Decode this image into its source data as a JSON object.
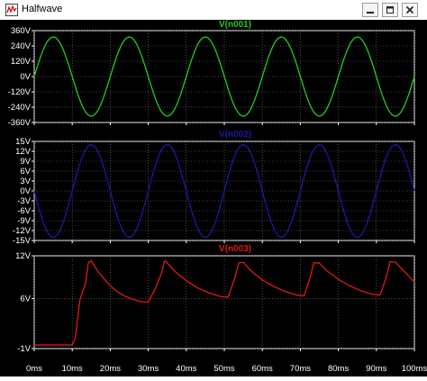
{
  "window": {
    "title": "Halfwave",
    "buttons": [
      {
        "name": "minimize-button",
        "icon": "minimize-icon"
      },
      {
        "name": "restore-button",
        "icon": "restore-icon"
      },
      {
        "name": "close-button",
        "icon": "close-icon"
      }
    ],
    "app_icon": "waveform-chart-icon"
  },
  "colors": {
    "background": "#000000",
    "axis": "#ffffff",
    "grid": "#7f7f7f",
    "trace1": "#22cc22",
    "trace2": "#1a1aa6",
    "trace3": "#e01818"
  },
  "chart_data": [
    {
      "type": "line",
      "title": "V(n001)",
      "color": "#22cc22",
      "ylim": [
        -360,
        360
      ],
      "xlim": [
        0,
        100
      ],
      "yticks": [
        "360V",
        "240V",
        "120V",
        "0V",
        "-120V",
        "-240V",
        "-360V"
      ],
      "ytick_values": [
        360,
        240,
        120,
        0,
        -120,
        -240,
        -360
      ],
      "series": [
        {
          "x": [
            0,
            5,
            10,
            15,
            20,
            25,
            30,
            35,
            40,
            45,
            50,
            55,
            60,
            65,
            70,
            75,
            80,
            85,
            90,
            95,
            100
          ],
          "values": [
            0,
            310,
            0,
            -310,
            0,
            310,
            0,
            -310,
            0,
            310,
            0,
            -310,
            0,
            310,
            0,
            -310,
            0,
            310,
            0,
            -310,
            0
          ]
        }
      ],
      "waveform": {
        "kind": "sine",
        "amplitude": 310,
        "frequency_hz": 50
      }
    },
    {
      "type": "line",
      "title": "V(n002)",
      "color": "#1a1aa6",
      "ylim": [
        -15,
        15
      ],
      "xlim": [
        0,
        100
      ],
      "yticks": [
        "15V",
        "12V",
        "9V",
        "6V",
        "3V",
        "0V",
        "-3V",
        "-6V",
        "-9V",
        "-12V",
        "-15V"
      ],
      "ytick_values": [
        15,
        12,
        9,
        6,
        3,
        0,
        -3,
        -6,
        -9,
        -12,
        -15
      ],
      "series": [
        {
          "x": [
            0,
            5,
            10,
            15,
            20,
            25,
            30,
            35,
            40,
            45,
            50,
            55,
            60,
            65,
            70,
            75,
            80,
            85,
            90,
            95,
            100
          ],
          "values": [
            0,
            -14,
            0,
            14,
            0,
            -14,
            0,
            14,
            0,
            -14,
            0,
            14,
            0,
            -14,
            0,
            14,
            0,
            -14,
            0,
            14,
            0
          ]
        }
      ],
      "waveform": {
        "kind": "sine",
        "amplitude": -14,
        "frequency_hz": 50
      }
    },
    {
      "type": "line",
      "title": "V(n003)",
      "color": "#e01818",
      "ylim": [
        -1,
        12
      ],
      "xlim": [
        0,
        100
      ],
      "yticks": [
        "12V",
        "6V",
        "-1V"
      ],
      "ytick_values": [
        12,
        6,
        -1
      ],
      "xticks": [
        "0ms",
        "10ms",
        "20ms",
        "30ms",
        "40ms",
        "50ms",
        "60ms",
        "70ms",
        "80ms",
        "90ms",
        "100ms"
      ],
      "xtick_values": [
        0,
        10,
        20,
        30,
        40,
        50,
        60,
        70,
        80,
        90,
        100
      ],
      "series": [
        {
          "x": [
            0,
            10,
            10.8,
            12.0,
            13.5,
            14.2,
            15.0,
            16.5,
            18,
            20,
            22,
            24,
            26,
            28,
            30,
            32,
            33.5,
            34.3,
            35,
            37,
            40,
            43,
            46,
            49,
            51,
            52.8,
            53.8,
            55,
            57,
            60,
            63,
            66,
            69,
            71,
            72.5,
            73.5,
            75,
            77,
            80,
            83,
            86,
            89,
            91,
            92.6,
            93.6,
            95,
            97,
            100
          ],
          "values": [
            -0.5,
            -0.5,
            0.5,
            5.8,
            8.2,
            11.0,
            11.3,
            10.0,
            9.0,
            7.8,
            6.9,
            6.3,
            5.9,
            5.6,
            5.5,
            7.6,
            9.6,
            11.3,
            11.0,
            9.8,
            8.5,
            7.5,
            6.8,
            6.3,
            6.2,
            9.0,
            11.0,
            11.1,
            9.9,
            8.6,
            7.7,
            7.0,
            6.5,
            6.4,
            8.8,
            11.0,
            11.0,
            9.9,
            8.7,
            7.8,
            7.1,
            6.6,
            6.5,
            9.0,
            11.2,
            11.1,
            10.0,
            8.3
          ]
        }
      ]
    }
  ]
}
